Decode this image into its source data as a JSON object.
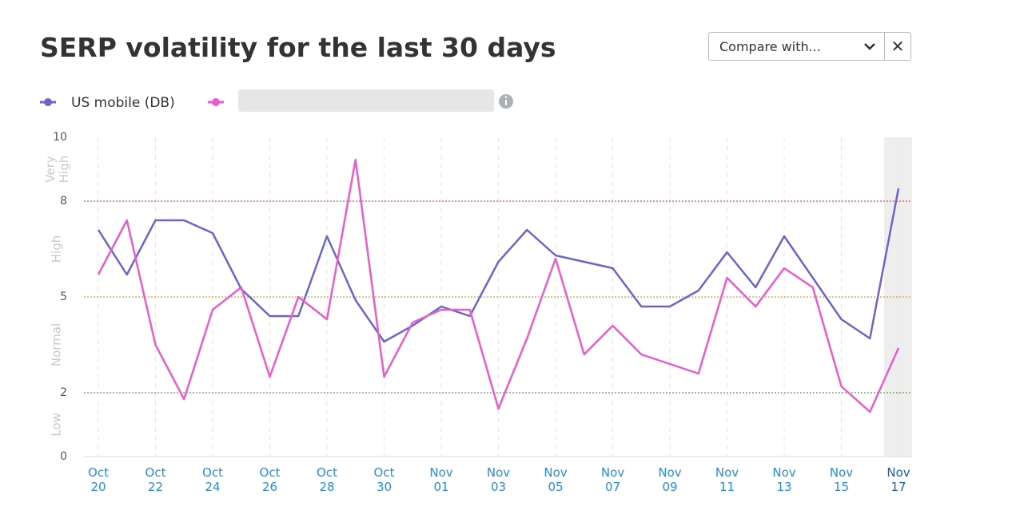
{
  "compare_control": {
    "placeholder": "Compare with...",
    "close": "✕"
  },
  "chart_data": {
    "type": "line",
    "title": "SERP volatility for the last 30 days",
    "categories": [
      "Oct 20",
      null,
      "Oct 22",
      null,
      "Oct 24",
      null,
      "Oct 26",
      null,
      "Oct 28",
      null,
      "Oct 30",
      null,
      "Nov 01",
      null,
      "Nov 03",
      null,
      "Nov 05",
      null,
      "Nov 07",
      null,
      "Nov 09",
      null,
      "Nov 11",
      null,
      "Nov 13",
      null,
      "Nov 15",
      null,
      "Nov 17"
    ],
    "series": [
      {
        "name": "US mobile (DB)",
        "color": "#6b66c9",
        "values": [
          7.1,
          5.7,
          7.4,
          7.4,
          7.0,
          5.25,
          4.4,
          4.4,
          6.9,
          4.9,
          3.6,
          4.1,
          4.7,
          4.4,
          6.1,
          7.1,
          6.3,
          6.1,
          5.9,
          4.7,
          4.7,
          5.2,
          6.4,
          5.3,
          6.9,
          5.6,
          4.3,
          3.7,
          8.4
        ]
      },
      {
        "color": "#e85ccc",
        "values": [
          5.7,
          7.4,
          3.5,
          1.8,
          4.6,
          5.3,
          2.5,
          5.0,
          4.3,
          9.3,
          2.5,
          4.2,
          4.6,
          4.6,
          1.5,
          3.7,
          6.2,
          3.2,
          4.1,
          3.2,
          2.9,
          2.6,
          5.6,
          4.7,
          5.9,
          5.3,
          2.2,
          1.4,
          3.4
        ]
      }
    ],
    "ylim": [
      0,
      10
    ],
    "yticks": [
      0,
      2,
      5,
      8,
      10
    ],
    "thresholds": [
      {
        "value": 2,
        "color": "#5aa33f"
      },
      {
        "value": 5,
        "color": "#e39a2b"
      },
      {
        "value": 8,
        "color": "#d9534f"
      }
    ],
    "bands": [
      {
        "label": "Low",
        "from": 0,
        "to": 2
      },
      {
        "label": "Normal",
        "from": 2,
        "to": 5
      },
      {
        "label": "High",
        "from": 5,
        "to": 8
      },
      {
        "label": "Very High",
        "from": 8,
        "to": 10
      }
    ],
    "highlight_index": 28
  }
}
